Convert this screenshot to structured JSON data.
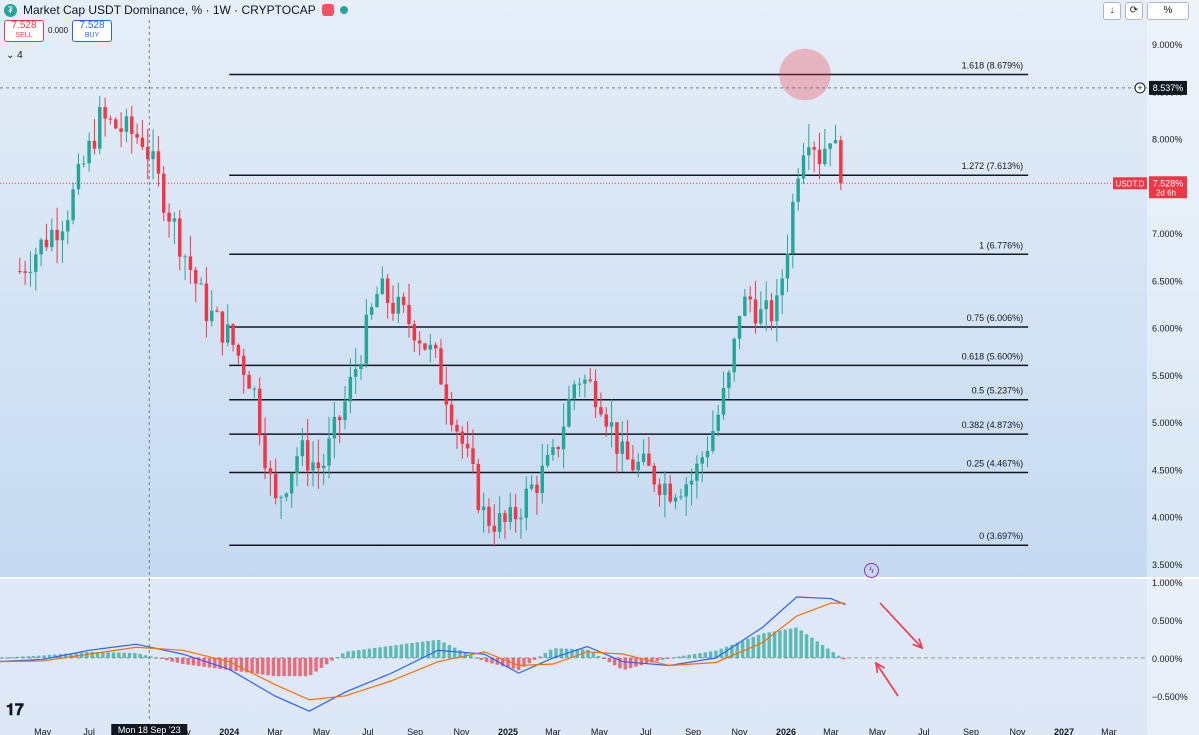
{
  "header": {
    "title": "Market Cap USDT Dominance, % · 1W · CRYPTOCAP",
    "logo_icon": "tether-icon"
  },
  "trade": {
    "sell_price": "7.528",
    "sell_label": "SELL",
    "spread": "0.000",
    "buy_price": "7.528",
    "buy_label": "BUY"
  },
  "indicators": {
    "count": "4"
  },
  "toolbar": {
    "download": "↓",
    "refresh": "⟳",
    "percent": "%"
  },
  "labels": {
    "crosshair_value": "8.537%",
    "last_symbol": "USDT.D",
    "last_value": "7.528%",
    "last_countdown": "2d 6h",
    "crosshair_date": "Mon 18 Sep '23"
  },
  "colors": {
    "up": "#26a69a",
    "down": "#f23645",
    "background": "#cfe0f5",
    "macd": "#2962ff",
    "signal": "#ff6d00",
    "highlight": "#f23645"
  },
  "chart_data": [
    {
      "type": "candlestick",
      "title": "Market Cap USDT Dominance, % · 1W · CRYPTOCAP",
      "timeframe": "1W",
      "y_axis": {
        "unit": "%",
        "ticks": [
          "3.500%",
          "4.000%",
          "4.500%",
          "5.000%",
          "5.500%",
          "6.000%",
          "6.500%",
          "7.000%",
          "7.500%",
          "8.000%",
          "8.500%",
          "9.000%"
        ],
        "ylim": [
          3.35,
          9.15
        ]
      },
      "x_axis": {
        "ticks": [
          "May",
          "Jul",
          "Sep",
          "Nov",
          "2024",
          "Mar",
          "May",
          "Jul",
          "Sep",
          "Nov",
          "2025",
          "Mar",
          "May",
          "Jul",
          "Sep",
          "Nov",
          "2026",
          "Mar",
          "May",
          "Jul",
          "Sep",
          "Nov",
          "2027",
          "Mar"
        ]
      },
      "close_path": {
        "dates": [
          "2023-04-01",
          "2023-06-01",
          "2023-07-15",
          "2023-09-10",
          "2023-10-15",
          "2023-12-01",
          "2024-01-01",
          "2024-02-01",
          "2024-03-01",
          "2024-04-01",
          "2024-05-01",
          "2024-06-01",
          "2024-07-15",
          "2024-09-01",
          "2024-10-01",
          "2024-11-01",
          "2024-12-01",
          "2025-01-01",
          "2025-02-01",
          "2025-03-01",
          "2025-04-01",
          "2025-05-01",
          "2025-06-01",
          "2025-07-01",
          "2025-08-01",
          "2025-09-01",
          "2025-10-01",
          "2025-10-20",
          "2025-11-01",
          "2025-11-15",
          "2025-12-01",
          "2025-12-20",
          "2026-01-05",
          "2026-01-20",
          "2026-02-01",
          "2026-02-15",
          "2026-03-01",
          "2026-03-15"
        ],
        "values": [
          6.6,
          7.2,
          8.2,
          8.0,
          7.2,
          6.2,
          5.9,
          5.4,
          4.1,
          4.7,
          4.5,
          5.2,
          6.4,
          6.0,
          5.6,
          4.8,
          4.0,
          3.9,
          4.3,
          4.6,
          5.5,
          5.3,
          4.6,
          4.5,
          4.3,
          4.4,
          5.0,
          5.5,
          6.2,
          6.3,
          6.1,
          6.2,
          7.0,
          7.9,
          8.1,
          7.8,
          8.1,
          7.528
        ]
      },
      "last_value": 7.528
    },
    {
      "type": "line",
      "name": "Fibonacci retracement",
      "levels": [
        {
          "label": "1.618 (8.679%)",
          "value": 8.679
        },
        {
          "label": "1.272 (7.613%)",
          "value": 7.613
        },
        {
          "label": "1 (6.776%)",
          "value": 6.776
        },
        {
          "label": "0.75 (6.006%)",
          "value": 6.006
        },
        {
          "label": "0.618 (5.600%)",
          "value": 5.6
        },
        {
          "label": "0.5 (5.237%)",
          "value": 5.237
        },
        {
          "label": "0.382 (4.873%)",
          "value": 4.873
        },
        {
          "label": "0.25 (4.467%)",
          "value": 4.467
        },
        {
          "label": "0 (3.697%)",
          "value": 3.697
        }
      ],
      "start_date": "2024-01-01",
      "end_date": "2026-11-15"
    },
    {
      "type": "line",
      "name": "MACD",
      "y_axis": {
        "ticks": [
          "1.000%",
          "0.500%",
          "0.000%",
          "−0.500%"
        ],
        "ylim": [
          -0.75,
          1.05
        ]
      },
      "series": [
        {
          "name": "MACD",
          "dates": [
            "2023-03-01",
            "2023-05-01",
            "2023-07-01",
            "2023-09-01",
            "2023-11-01",
            "2024-01-01",
            "2024-03-01",
            "2024-04-15",
            "2024-06-01",
            "2024-08-01",
            "2024-10-01",
            "2024-12-01",
            "2025-01-15",
            "2025-03-01",
            "2025-04-15",
            "2025-06-01",
            "2025-08-01",
            "2025-10-01",
            "2025-12-01",
            "2026-01-15",
            "2026-03-01",
            "2026-03-20"
          ],
          "values": [
            -0.05,
            -0.02,
            0.1,
            0.18,
            0.05,
            -0.15,
            -0.5,
            -0.7,
            -0.45,
            -0.2,
            0.1,
            0.05,
            -0.2,
            0.0,
            0.15,
            -0.05,
            -0.1,
            0.0,
            0.4,
            0.8,
            0.78,
            0.7
          ]
        },
        {
          "name": "Signal",
          "dates": [
            "2023-03-01",
            "2023-05-01",
            "2023-07-01",
            "2023-09-01",
            "2023-11-01",
            "2024-01-01",
            "2024-03-01",
            "2024-04-15",
            "2024-06-01",
            "2024-08-01",
            "2024-10-01",
            "2024-12-01",
            "2025-01-15",
            "2025-03-01",
            "2025-04-15",
            "2025-06-01",
            "2025-08-01",
            "2025-10-01",
            "2025-12-01",
            "2026-01-15",
            "2026-03-01",
            "2026-03-20"
          ],
          "values": [
            -0.05,
            -0.04,
            0.05,
            0.14,
            0.1,
            -0.05,
            -0.35,
            -0.55,
            -0.5,
            -0.3,
            -0.05,
            0.08,
            -0.1,
            -0.08,
            0.08,
            0.05,
            -0.1,
            -0.06,
            0.2,
            0.55,
            0.72,
            0.72
          ]
        }
      ]
    }
  ]
}
